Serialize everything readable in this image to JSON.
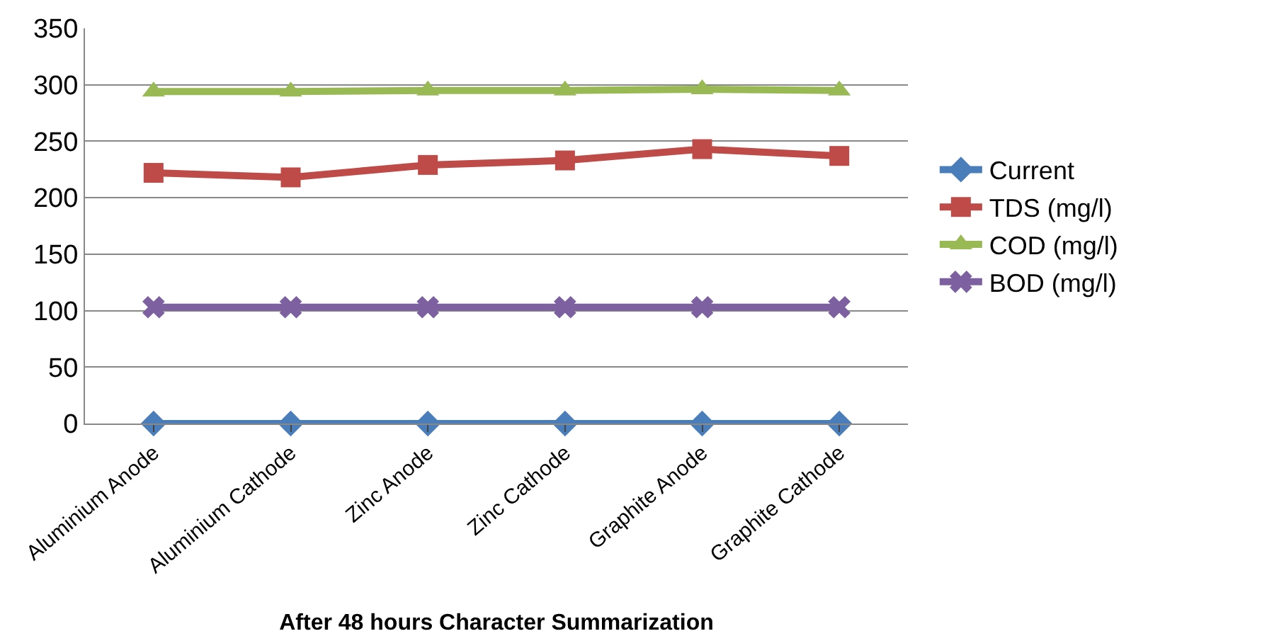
{
  "chart_data": {
    "type": "line",
    "title": "After 48 hours Character Summarization",
    "categories": [
      "Aluminium Anode",
      "Aluminium Cathode",
      "Zinc Anode",
      "Zinc Cathode",
      "Graphite Anode",
      "Graphite Cathode"
    ],
    "series": [
      {
        "name": "Current",
        "color": "#4a7ebb",
        "marker": "diamond",
        "values": [
          0,
          0,
          0,
          0,
          0,
          0
        ]
      },
      {
        "name": "TDS (mg/l)",
        "color": "#be4b48",
        "marker": "square",
        "values": [
          222,
          218,
          229,
          233,
          243,
          237
        ]
      },
      {
        "name": "COD (mg/l)",
        "color": "#98b954",
        "marker": "triangle",
        "values": [
          294,
          294,
          295,
          295,
          296,
          295
        ]
      },
      {
        "name": "BOD (mg/l)",
        "color": "#7d60a0",
        "marker": "cross",
        "values": [
          103,
          103,
          103,
          103,
          103,
          103
        ]
      }
    ],
    "ylim": [
      0,
      350
    ],
    "yticks": [
      0,
      50,
      100,
      150,
      200,
      250,
      300,
      350
    ],
    "grid": "y",
    "legend": "right"
  }
}
